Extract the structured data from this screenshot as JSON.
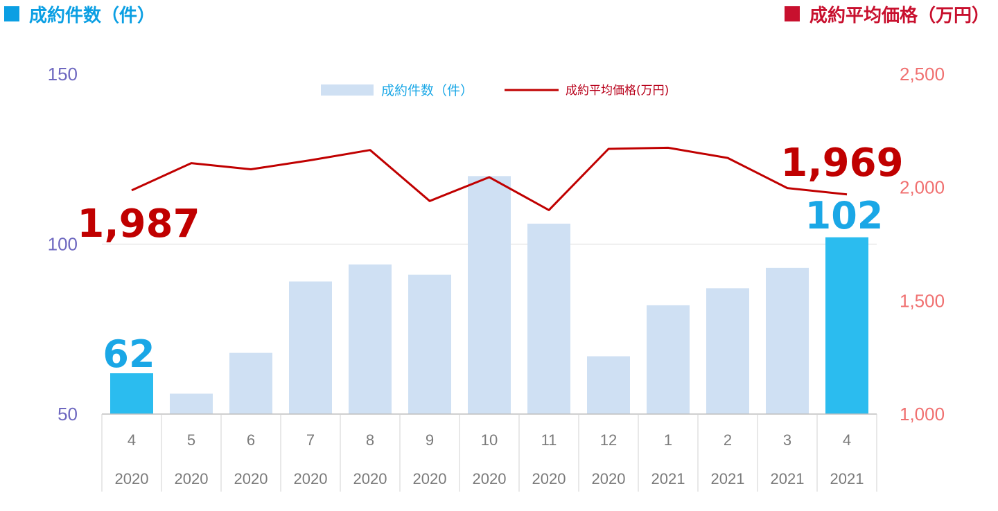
{
  "header": {
    "left_title": "成約件数（件）",
    "right_title": "成約平均価格（万円）",
    "left_color": "#0b9fe3",
    "right_color": "#c8102e"
  },
  "chart_data": {
    "type": "bar",
    "categories": [
      "4",
      "5",
      "6",
      "7",
      "8",
      "9",
      "10",
      "11",
      "12",
      "1",
      "2",
      "3",
      "4"
    ],
    "years": [
      "2020",
      "2020",
      "2020",
      "2020",
      "2020",
      "2020",
      "2020",
      "2020",
      "2020",
      "2021",
      "2021",
      "2021",
      "2021"
    ],
    "series": [
      {
        "name": "成約件数（件）",
        "type": "bar",
        "axis": "left",
        "values": [
          62,
          56,
          68,
          89,
          94,
          91,
          120,
          106,
          67,
          82,
          87,
          93,
          102
        ],
        "color": "#cfe0f3",
        "highlight_color": "#2bbcef",
        "highlight_indices": [
          0,
          12
        ]
      },
      {
        "name": "成約平均価格(万円)",
        "type": "line",
        "axis": "right",
        "values": [
          1987,
          2107,
          2080,
          2120,
          2165,
          1940,
          2045,
          1900,
          2170,
          2175,
          2130,
          1997,
          1969
        ],
        "color": "#c00000"
      }
    ],
    "y_left": {
      "lim": [
        50,
        150
      ],
      "ticks": [
        "150",
        "100",
        "50"
      ],
      "color": "#6e68c0"
    },
    "y_right": {
      "lim": [
        1000,
        2500
      ],
      "ticks": [
        "2,500",
        "2,000",
        "1,500",
        "1,000"
      ],
      "color": "#f07070"
    },
    "grid": true,
    "legend_position": "top-center",
    "annotations": {
      "first_bar": "62",
      "last_bar": "102",
      "first_price": "1,987",
      "last_price": "1,969"
    }
  }
}
